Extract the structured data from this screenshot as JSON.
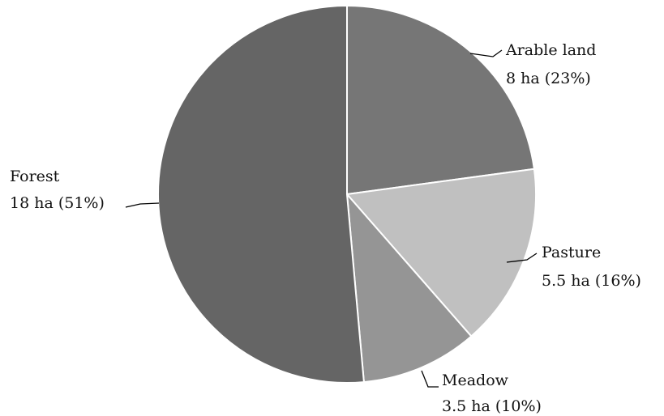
{
  "chart_data": {
    "type": "pie",
    "unit": "ha",
    "slices": [
      {
        "label": "Arable land",
        "value": 8,
        "percent": 23,
        "value_text": "8 ha (23%)",
        "color": "#767676"
      },
      {
        "label": "Pasture",
        "value": 5.5,
        "percent": 16,
        "value_text": "5.5 ha (16%)",
        "color": "#c0c0c0"
      },
      {
        "label": "Meadow",
        "value": 3.5,
        "percent": 10,
        "value_text": "3.5 ha (10%)",
        "color": "#959595"
      },
      {
        "label": "Forest",
        "value": 18,
        "percent": 51,
        "value_text": "18 ha (51%)",
        "color": "#656565"
      }
    ],
    "start_angle_deg": 0,
    "direction": "clockwise",
    "legend": "none",
    "data_labels": "outside with leader lines"
  }
}
